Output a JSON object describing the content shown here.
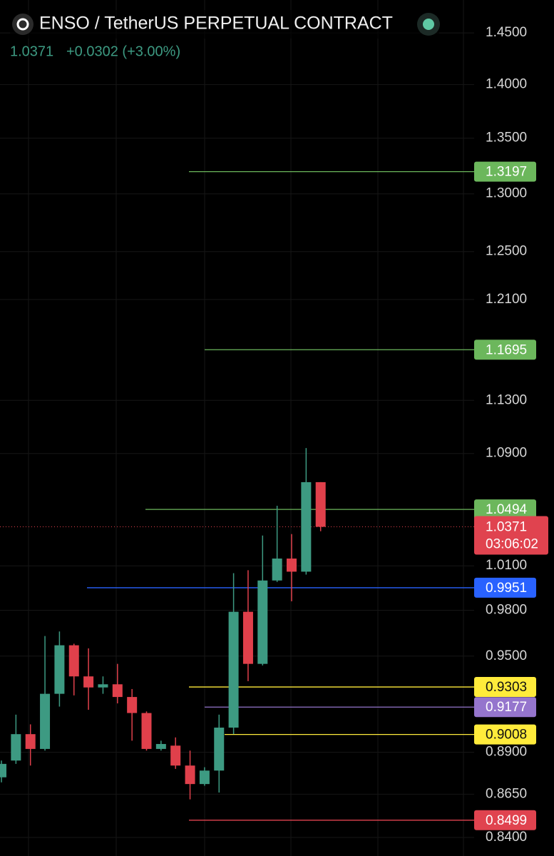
{
  "chart_data": {
    "type": "candlestick",
    "title": "ENSO / TetherUS PERPETUAL CONTRACT",
    "last_price": 1.0371,
    "change_label": "+0.0302 (+3.00%)",
    "countdown": "03:06:02",
    "log_scale": true,
    "grid": true,
    "up_color": "#3d9a82",
    "down_color": "#e0404b",
    "ylim": [
      0.8295,
      1.4827
    ],
    "yticks": [
      {
        "value": 1.45,
        "label": "1.4500"
      },
      {
        "value": 1.4,
        "label": "1.4000"
      },
      {
        "value": 1.35,
        "label": "1.3500"
      },
      {
        "value": 1.3,
        "label": "1.3000"
      },
      {
        "value": 1.25,
        "label": "1.2500"
      },
      {
        "value": 1.21,
        "label": "1.2100"
      },
      {
        "value": 1.13,
        "label": "1.1300"
      },
      {
        "value": 1.09,
        "label": "1.0900"
      },
      {
        "value": 1.01,
        "label": "1.0100"
      },
      {
        "value": 0.98,
        "label": "0.9800"
      },
      {
        "value": 0.95,
        "label": "0.9500"
      },
      {
        "value": 0.89,
        "label": "0.8900"
      },
      {
        "value": 0.865,
        "label": "0.8650"
      },
      {
        "value": 0.84,
        "label": "0.8400"
      }
    ],
    "open": [
      0.875,
      0.885,
      0.901,
      0.892,
      0.926,
      0.957,
      0.937,
      0.93,
      0.932,
      0.924,
      0.914,
      0.892,
      0.894,
      0.882,
      0.871,
      0.879,
      0.905,
      0.979,
      0.945,
      1.0,
      1.015,
      1.006,
      1.069
    ],
    "high": [
      0.885,
      0.913,
      0.907,
      0.963,
      0.966,
      0.958,
      0.955,
      0.937,
      0.945,
      0.929,
      0.915,
      0.897,
      0.899,
      0.891,
      0.881,
      0.913,
      1.005,
      1.007,
      1.031,
      1.052,
      1.032,
      1.094,
      1.069
    ],
    "low": [
      0.872,
      0.883,
      0.882,
      0.891,
      0.918,
      0.925,
      0.916,
      0.926,
      0.92,
      0.897,
      0.891,
      0.891,
      0.88,
      0.862,
      0.87,
      0.866,
      0.901,
      0.934,
      0.944,
      0.999,
      0.986,
      1.004,
      1.034
    ],
    "close": [
      0.883,
      0.901,
      0.892,
      0.926,
      0.957,
      0.937,
      0.93,
      0.932,
      0.924,
      0.914,
      0.892,
      0.895,
      0.882,
      0.871,
      0.879,
      0.905,
      0.979,
      0.945,
      1.0,
      1.015,
      1.006,
      1.069,
      1.0371
    ],
    "levels": [
      {
        "value": 1.3197,
        "color": "#6cb75c"
      },
      {
        "value": 1.1695,
        "color": "#6cb75c"
      },
      {
        "value": 1.0494,
        "color": "#6cb75c"
      },
      {
        "value": 0.9951,
        "color": "#2962ff"
      },
      {
        "value": 0.9303,
        "color": "#ffeb3b"
      },
      {
        "value": 0.9177,
        "color": "#9575cd"
      },
      {
        "value": 0.9008,
        "color": "#ffeb3b"
      },
      {
        "value": 0.8499,
        "color": "#e0434f"
      }
    ]
  }
}
